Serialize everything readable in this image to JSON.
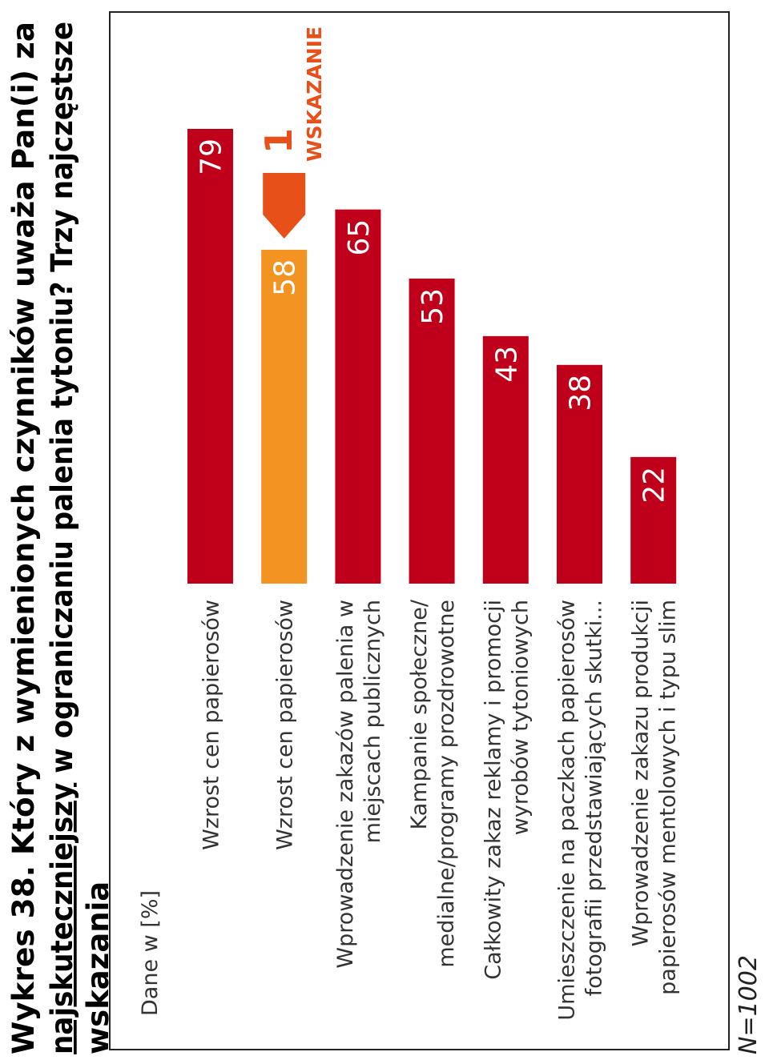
{
  "title": {
    "prefix": "Wykres 38. Który z wymienionych czynników uważa Pan(i) za",
    "underlined": "najskuteczniejszy",
    "rest": " w ograniczaniu palenia tytoniu? Trzy najczęstsze",
    "line3": "wskazania"
  },
  "units_label": "Dane w [%]",
  "sample_note": "N=1002",
  "callout": {
    "number": "1",
    "label": "WSKAZANIE"
  },
  "colors": {
    "bar_main": "#c0001a",
    "bar_highlight": "#f39322",
    "callout": "#e8501a",
    "text": "#333333",
    "frame": "#222222"
  },
  "chart_data": {
    "type": "bar",
    "orientation": "horizontal",
    "categories": [
      [
        "Wzrost cen papierosów"
      ],
      [
        "Wzrost cen papierosów"
      ],
      [
        "Wprowadzenie zakazów palenia w",
        "miejscach publicznych"
      ],
      [
        "Kampanie społeczne/",
        "medialne/programy prozdrowotne"
      ],
      [
        "Całkowity zakaz reklamy i promocji",
        "wyrobów tytoniowych"
      ],
      [
        "Umieszczenie na paczkach papierosów",
        "fotografii przedstawiających skutki..."
      ],
      [
        "Wprowadzenie zakazu produkcji",
        "papierosów mentolowych i typu slim"
      ]
    ],
    "values": [
      79,
      58,
      65,
      53,
      43,
      38,
      22
    ],
    "highlighted_index": 1,
    "value_labels": [
      "79",
      "58",
      "65",
      "53",
      "43",
      "38",
      "22"
    ],
    "xlim": [
      0,
      79
    ]
  }
}
